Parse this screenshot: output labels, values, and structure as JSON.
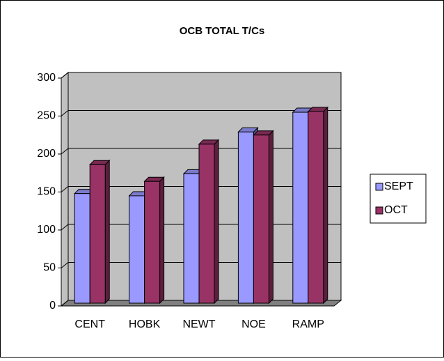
{
  "chart_data": {
    "type": "bar3d",
    "title": "OCB TOTAL T/Cs",
    "categories": [
      "CENT",
      "HOBK",
      "NEWT",
      "NOE",
      "RAMP"
    ],
    "series": [
      {
        "name": "SEPT",
        "color": "#9999ff",
        "values": [
          148,
          145,
          174,
          229,
          255
        ]
      },
      {
        "name": "OCT",
        "color": "#993366",
        "values": [
          186,
          164,
          213,
          225,
          256
        ]
      }
    ],
    "ylim": [
      0,
      300
    ],
    "yticks": [
      0,
      50,
      100,
      150,
      200,
      250,
      300
    ],
    "grid": true,
    "legend": "right"
  }
}
